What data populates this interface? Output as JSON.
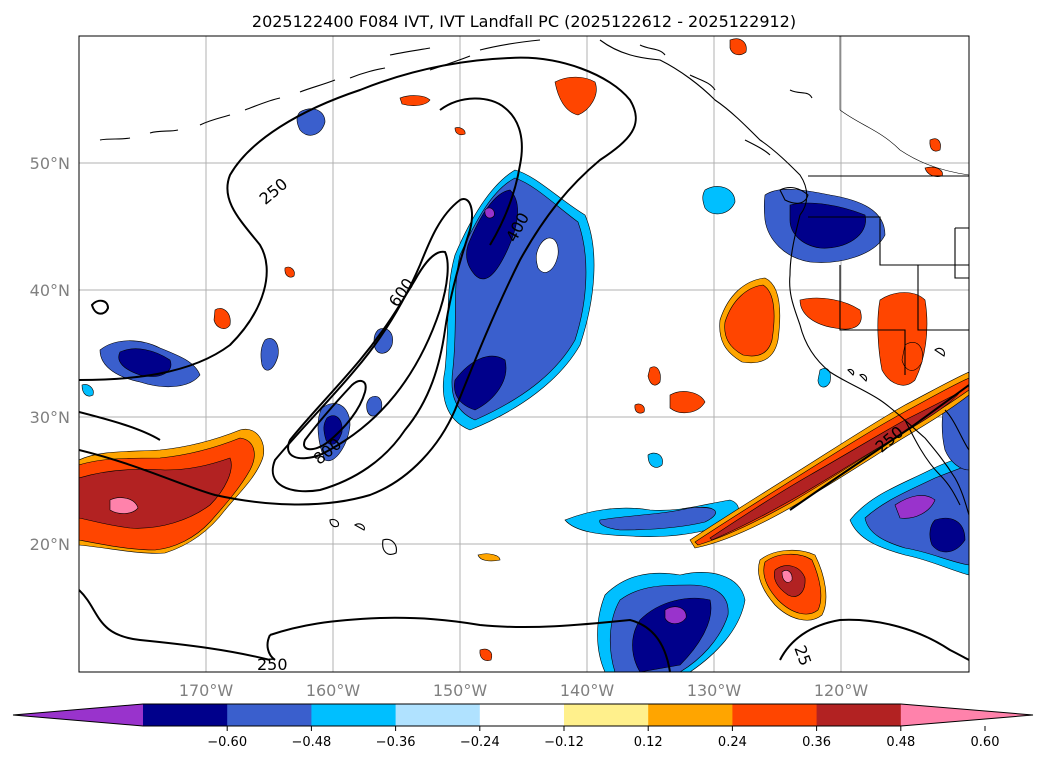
{
  "title": "2025122400 F084 IVT, IVT Landfall PC (2025122612 - 2025122912)",
  "lat_labels": [
    "50°N",
    "40°N",
    "30°N",
    "20°N"
  ],
  "lon_labels": [
    "170°W",
    "160°W",
    "150°W",
    "140°W",
    "130°W",
    "120°W"
  ],
  "contour_labels": [
    "250",
    "400",
    "600",
    "800",
    "250",
    "250",
    "25"
  ],
  "colorbar": {
    "ticks": [
      "−0.60",
      "−0.48",
      "−0.36",
      "−0.24",
      "−0.12",
      "0.12",
      "0.24",
      "0.36",
      "0.48",
      "0.60"
    ],
    "colors": [
      "#9933cc",
      "#00008b",
      "#3a5fcd",
      "#00bfff",
      "#b0e2ff",
      "#ffffff",
      "#fff08c",
      "#ffa500",
      "#ff4500",
      "#b22222",
      "#ff82ab"
    ]
  }
}
